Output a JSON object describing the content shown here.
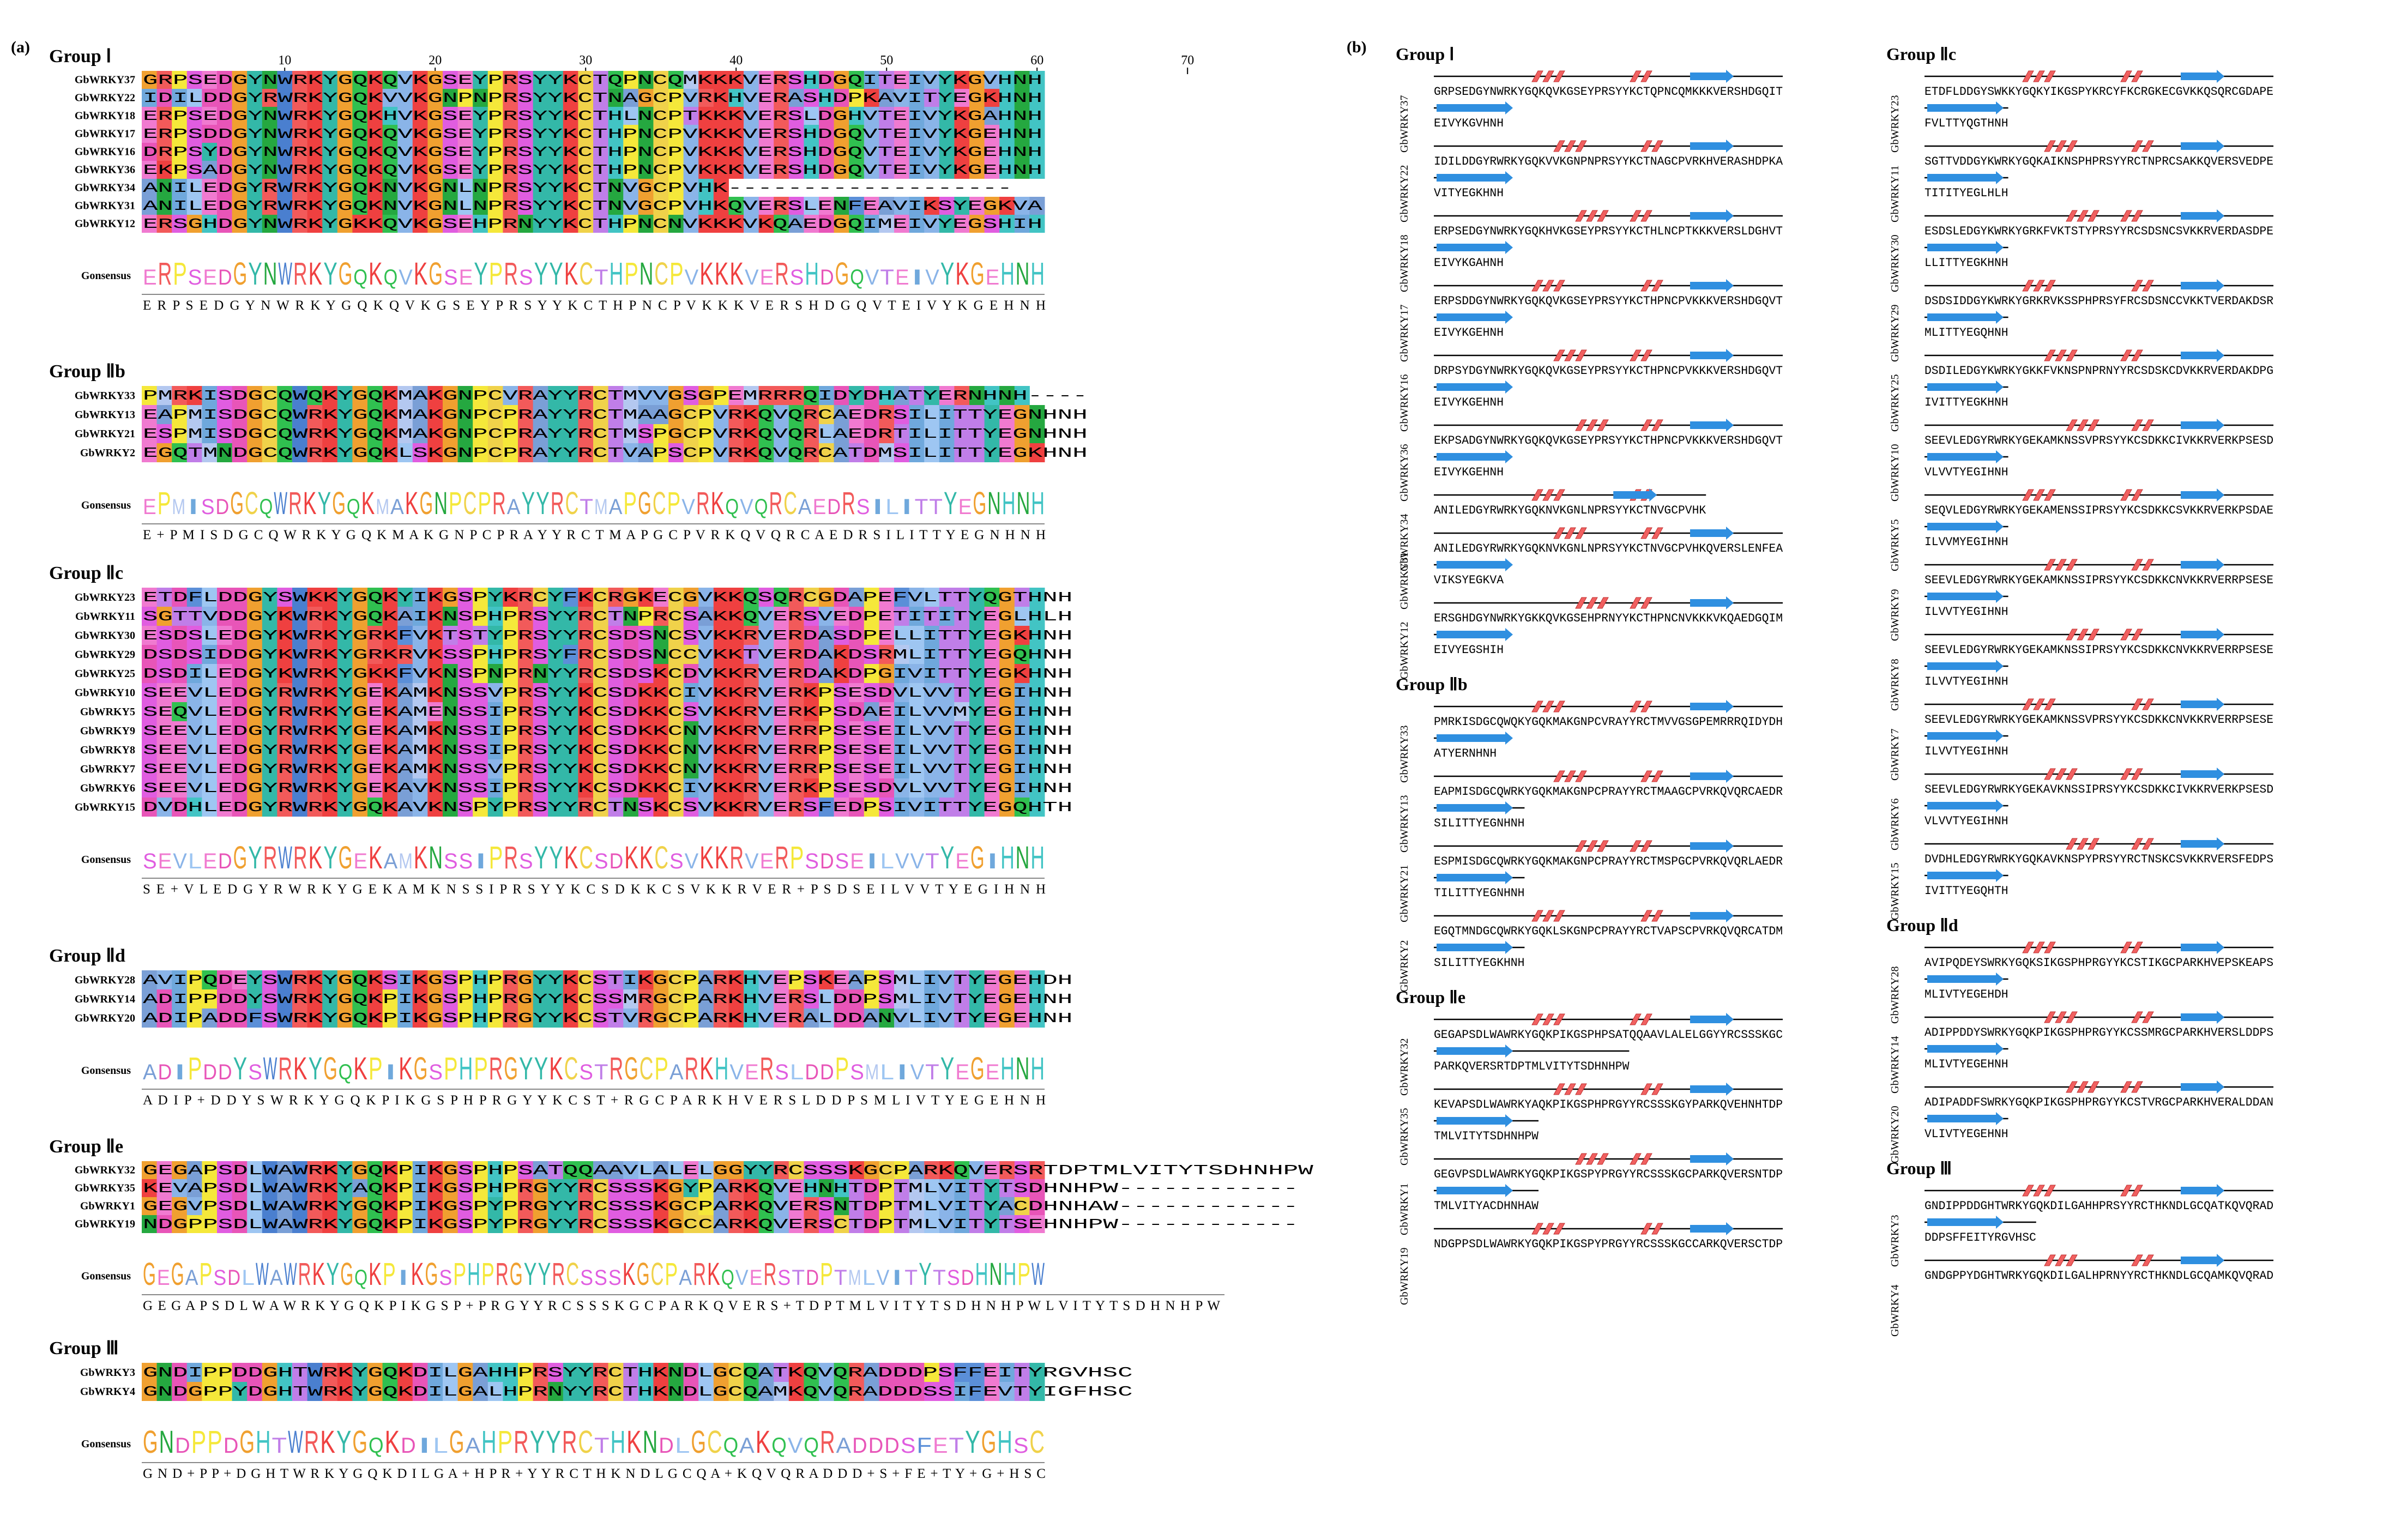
{
  "panel_a": {
    "label": "(a)",
    "ruler": [
      "10",
      "20",
      "30",
      "40",
      "50",
      "60",
      "70"
    ],
    "groups": [
      {
        "title": "Group Ⅰ",
        "rows": [
          {
            "name": "GbWRKY37",
            "seq": "GRPSEDGYNWRKYGQKQVKGSEYPRSYYKCTQPNCQMKKKVERSHDGQITEIVYKGVHNH"
          },
          {
            "name": "GbWRKY22",
            "seq": "IDILDDGYRWRKYGQKVVKGNPNPRSYYKCTNAGCPVRKHVERASHDPKAVITYEGKHNH"
          },
          {
            "name": "GbWRKY18",
            "seq": "ERPSEDGYNWRKYGQKHVKGSEYPRSYYKCTHLNCPTKKKVERSLDGHVTEIVYKGAHNH"
          },
          {
            "name": "GbWRKY17",
            "seq": "ERPSDDGYNWRKYGQKQVKGSEYPRSYYKCTHPNCPVKKKVERSHDGQVTEIVYKGEHNH"
          },
          {
            "name": "GbWRKY16",
            "seq": "DRPSYDGYNWRKYGQKQVKGSEYPRSYYKCTHPNCPVKKKVERSHDGQVTEIVYKGEHNH"
          },
          {
            "name": "GbWRKY36",
            "seq": "EKPSADGYNWRKYGQKQVKGSEYPRSYYKCTHPNCPVKKKVERSHDGQVTEIVYKGEHNH"
          },
          {
            "name": "GbWRKY34",
            "seq": "ANILEDGYRWRKYGQKNVKGNLNPRSYYKCTNVGCPVHK-------------------"
          },
          {
            "name": "GbWRKY31",
            "seq": "ANILEDGYRWRKYGQKNVKGNLNPRSYYKCTNVGCPVHKQVERSLENFEAVIKSYEGKVA"
          },
          {
            "name": "GbWRKY12",
            "seq": "ERSGHDGYNWRKYGKKQVKGSEHPRNYYKCTHPNCNVKKKVKQAEDGQIMEIVYEGSHIH"
          }
        ],
        "consensus_label": "Gonsensus",
        "consensus": "ERPSEDGYNWRKYGQKQVKGSEYPRSYYKCTHPNCPVKKKVERSHDGQVTEIVYKGEHNH",
        "consensus_line": "E R P S E D G Y N W R K Y G Q K Q V K G S E Y P R S Y Y K C T H P N C P V K K K V E R S H D G Q V T E I V Y K G E H N H"
      },
      {
        "title": "Group Ⅱb",
        "rows": [
          {
            "name": "GbWRKY33",
            "seq": "PMRKISDGCQWQKYGQKMAKGNPCVRAYYRCTMVVGSGPEMRRRQIDYDHATYERNHNH----"
          },
          {
            "name": "GbWRKY13",
            "seq": "EAPMISDGCQWRKYGQKMAKGNPCPRAYYRCTMAAGCPVRKQVQRCAEDRSILITTYEGNHNH"
          },
          {
            "name": "GbWRKY21",
            "seq": "ESPMISDGCQWRKYGQKMAKGNPCPRAYYRCTMSPGCPVRKQVQRLAEDRTILITTYEGNHNH"
          },
          {
            "name": "GbWRKY2",
            "seq": "EGQTMNDGCQWRKYGQKLSKGNPCPRAYYRCTVAPSCPVRKQVQRCATDMSILITTYEGKHNH"
          }
        ],
        "consensus_label": "Gonsensus",
        "consensus": "EPMISDGCQWRKYGQKMAKGNPCPRAYYRCTMAPGCPVRKQVQRCAEDRSILITTYEGNHNH",
        "consensus_line": "E + P M I S D G C Q W R K Y G Q K M A K G N P C P R A Y Y R C T M A P G C P V R K Q V Q R C A E D R S I L I T T Y E G N H N H"
      },
      {
        "title": "Group Ⅱc",
        "rows": [
          {
            "name": "GbWRKY23",
            "seq": "ETDFLDDGYSWKKYGQKYIKGSPYKRCYFKCRGKECGVKKQSQRCGDAPEFVLTTYQGTHNH"
          },
          {
            "name": "GbWRKY11",
            "seq": "SGTTVDDGYKWRKYGQKAIKNSPHPRSYYRCTNPRCSAKKQVERSVEDPETITITYEGLHLH"
          },
          {
            "name": "GbWRKY30",
            "seq": "ESDSLEDGYKWRKYGRKFVKTSTYPRSYYRCSDSNCSVKKRVERDASDPELLITTYEGKHNH"
          },
          {
            "name": "GbWRKY29",
            "seq": "DSDSIDDGYKWRKYGRKRVKSSPHPRSYFRCSDSNCCVKKTVERDAKDSRMLITTYEGQHNH"
          },
          {
            "name": "GbWRKY25",
            "seq": "DSDILEDGYKWRKYGKKFVKNSPNPRNYYRCSDSKCDVKKRVERDAKDPGIVITTYEGKHNH"
          },
          {
            "name": "GbWRKY10",
            "seq": "SEEVLEDGYRWRKYGEKAMKNSSVPRSYYKCSDKKCIVKKRVERKPSESDVLVVTYEGIHNH"
          },
          {
            "name": "GbWRKY5",
            "seq": "SEQVLEDGYRWRKYGEKAMENSSIPRSYYKCSDKKCSVKKRVERKPSDAEILVVMYEGIHNH"
          },
          {
            "name": "GbWRKY9",
            "seq": "SEEVLEDGYRWRKYGEKAMKNSSIPRSYYKCSDKKCNVKKRVERRPSESEILVVTYEGIHNH"
          },
          {
            "name": "GbWRKY8",
            "seq": "SEEVLEDGYRWRKYGEKAMKNSSIPRSYYKCSDKKCNVKKRVERRPSESEILVVTYEGIHNH"
          },
          {
            "name": "GbWRKY7",
            "seq": "SEEVLEDGYRWRKYGEKAMKNSSVPRSYYKCSDKKCNVKKRVERRPSESEILVVTYEGIHNH"
          },
          {
            "name": "GbWRKY6",
            "seq": "SEEVLEDGYRWRKYGEKAVKNSSIPRSYYKCSDKKCIVKKRVERKPSESDVLVVTYEGIHNH"
          },
          {
            "name": "GbWRKY15",
            "seq": "DVDHLEDGYRWRKYGQKAVKNSPYPRSYYRCTNSKCSVKKRVERSFEDPSIVITTYEGQHTH"
          }
        ],
        "consensus_label": "Gonsensus",
        "consensus": "SEVLEDGYRWRKYGEKAMKNSSIPRSYYKCSDKKCSVKKRVERPSDSEILVVTYEGIHNH",
        "consensus_line": "S E + V L E D G Y R W R K Y G E K A M K N S S I P R S Y Y K C S D K K C S V K K R V E R + P S D S E I L V V T Y E G I H N H"
      },
      {
        "title": "Group Ⅱd",
        "rows": [
          {
            "name": "GbWRKY28",
            "seq": "AVIPQDEYSWRKYGQKSIKGSPHPRGYYKCSTIKGCPARKHVEPSKEAPSMLIVTYEGEHDH"
          },
          {
            "name": "GbWRKY14",
            "seq": "ADIPPDDYSWRKYGQKPIKGSPHPRGYYKCSSMRGCPARKHVERSLDDPSMLIVTYEGEHNH"
          },
          {
            "name": "GbWRKY20",
            "seq": "ADIPADDFSWRKYGQKPIKGSPHPRGYYKCSTVRGCPARKHVERALDDANVLIVTYEGEHNH"
          }
        ],
        "consensus_label": "Gonsensus",
        "consensus": "ADIPDDYSWRKYGQKPIKGSPHPRGYYKCSTRGCPARKHVERSLDDPSMLIVTYEGEHNH",
        "consensus_line": "A D I P + D D Y S W R K Y G Q K P I K G S P H P R G Y Y K C S T + R G C P A R K H V E R S L D D P S M L I V T Y E G E H N H"
      },
      {
        "title": "Group Ⅱe",
        "rows": [
          {
            "name": "GbWRKY32",
            "seq": "GEGAPSDLWAWRKYGQKPIKGSPHPSATQQAAVLALELGGYYRCSSSKGCPARKQVERSRTDPTMLVITYTSDHNHPW"
          },
          {
            "name": "GbWRKY35",
            "seq": "KEVAPSDLWAWRKYAQKPIKGSPHPRGYYRCSSSKGYPARKQVEHNHTDPTMLVITYTSDHNHPW------------"
          },
          {
            "name": "GbWRKY1",
            "seq": "GEGVPSDLWAWRKYGQKPIKGSPYPRGYYRCSSSKGCPARKQVERSNTDPTMLVITYACDHNHAW------------"
          },
          {
            "name": "GbWRKY19",
            "seq": "NDGPPSDLWAWRKYGQKPIKGSPYPRGYYRCSSSKGCCARKQVERSCTDPTMLVITYTSEHNHPW------------"
          }
        ],
        "consensus_label": "Gonsensus",
        "consensus": "GEGAPSDLWAWRKYGQKPIKGSPHPRGYYRCSSSKGCPARKQVERSTDPTMLVITYTSDHNHPW",
        "consensus_line": "G E G A P S D L W A W R K Y G Q K P I K G S P + P R G Y Y R C S S S K G C P A R K Q V E R S + T D P T M L V I T Y T S D H N H P W L V I T Y T S D H N H P W"
      },
      {
        "title": "Group Ⅲ",
        "rows": [
          {
            "name": "GbWRKY3",
            "seq": "GNDIPPDDGHTWRKYGQKDILGAHHPRSYYRCTHKNDLGCQATKQVQRADDDPSFFEITYRGVHSC"
          },
          {
            "name": "GbWRKY4",
            "seq": "GNDGPPYDGHTWRKYGQKDILGALHPRNYYRCTHKNDLGCQAMKQVQRADDDSSIFEVTYIGFHSC"
          }
        ],
        "consensus_label": "Gonsensus",
        "consensus": "GNDPPDGHTWRKYGQKDILGAHPRYYRCTHKNDLGCQAKQVQRADDDSFETYGHSC",
        "consensus_line": "G N D + P P + D G H T W R K Y G Q K D I L G A + H P R + Y Y R C T H K N D L G C Q A + K Q V Q R A D D D + S + F E + T Y + G + H S C"
      }
    ]
  },
  "panel_b": {
    "label": "(b)",
    "left_column": [
      {
        "title": "Group Ⅰ",
        "entries": [
          {
            "name": "GbWRKY37",
            "lines": [
              "GRPSEDGYNWRKYGQKQVKGSEYPRSYYKCTQPNCQMKKKVERSHDGQIT",
              "EIVYKGVHNH"
            ]
          },
          {
            "name": "GbWRKY22",
            "lines": [
              "IDILDDGYRWRKYGQKVVKGNPNPRSYYKCTNAGCPVRKHVERASHDPKA",
              "VITYEGKHNH"
            ]
          },
          {
            "name": "GbWRKY18",
            "lines": [
              "ERPSEDGYNWRKYGQKHVKGSEYPRSYYKCTHLNCPTKKKVERSLDGHVT",
              "EIVYKGAHNH"
            ]
          },
          {
            "name": "GbWRKY17",
            "lines": [
              "ERPSDDGYNWRKYGQKQVKGSEYPRSYYKCTHPNCPVKKKVERSHDGQVT",
              "EIVYKGEHNH"
            ]
          },
          {
            "name": "GbWRKY16",
            "lines": [
              "DRPSYDGYNWRKYGQKQVKGSEYPRSYYKCTHPNCPVKKKVERSHDGQVT",
              "EIVYKGEHNH"
            ]
          },
          {
            "name": "GbWRKY36",
            "lines": [
              "EKPSADGYNWRKYGQKQVKGSEYPRSYYKCTHPNCPVKKKVERSHDGQVT",
              "EIVYKGEHNH"
            ]
          },
          {
            "name": "GbWRKY34",
            "lines": [
              "ANILEDGYRWRKYGQKNVKGNLNPRSYYKCTNVGCPVHK"
            ]
          },
          {
            "name": "GbWRKY31",
            "lines": [
              "ANILEDGYRWRKYGQKNVKGNLNPRSYYKCTNVGCPVHKQVERSLENFEA",
              "VIKSYEGKVA"
            ]
          },
          {
            "name": "GbWRKY12",
            "lines": [
              "ERSGHDGYNWRKYGKKQVKGSEHPRNYYKCTHPNCNVKKKVKQAEDGQIM",
              "EIVYEGSHIH"
            ]
          }
        ]
      },
      {
        "title": "Group Ⅱb",
        "entries": [
          {
            "name": "GbWRKY33",
            "lines": [
              "PMRKISDGCQWQKYGQKMAKGNPCVRAYYRCTMVVGSGPEMRRRQIDYDH",
              "ATYERNHNH"
            ]
          },
          {
            "name": "GbWRKY13",
            "lines": [
              "EAPMISDGCQWRKYGQKMAKGNPCPRAYYRCTMAAGCPVRKQVQRCAEDR",
              "SILITTYEGNHNH"
            ]
          },
          {
            "name": "GbWRKY21",
            "lines": [
              "ESPMISDGCQWRKYGQKMAKGNPCPRAYYRCTMSPGCPVRKQVQRLAEDR",
              "TILITTYEGNHNH"
            ]
          },
          {
            "name": "GbWRKY2",
            "lines": [
              "EGQTMNDGCQWRKYGQKLSKGNPCPRAYYRCTVAPSCPVRKQVQRCATDM",
              "SILITTYEGKHNH"
            ]
          }
        ]
      },
      {
        "title": "Group Ⅱe",
        "entries": [
          {
            "name": "GbWRKY32",
            "lines": [
              "GEGAPSDLWAWRKYGQKPIKGSPHPSATQQAAVLALELGGYYRCSSSKGC",
              "PARKQVERSRTDPTMLVITYTSDHNHPW"
            ]
          },
          {
            "name": "GbWRKY35",
            "lines": [
              "KEVAPSDLWAWRKYAQKPIKGSPHPRGYYRCSSSKGYPARKQVEHNHTDP",
              "TMLVITYTSDHNHPW"
            ]
          },
          {
            "name": "GbWRKY1",
            "lines": [
              "GEGVPSDLWAWRKYGQKPIKGSPYPRGYYRCSSSKGCPARKQVERSNTDP",
              "TMLVITYACDHNHAW"
            ]
          },
          {
            "name": "GbWRKY19",
            "lines": [
              "NDGPPSDLWAWRKYGQKPIKGSPYPRGYYRCSSSKGCCARKQVERSCTDP"
            ]
          }
        ]
      }
    ],
    "right_column": [
      {
        "title": "Group Ⅱc",
        "entries": [
          {
            "name": "GbWRKY23",
            "lines": [
              "ETDFLDDGYSWKKYGQKYIKGSPYKRCYFKCRGKECGVKKQSQRCGDAPE",
              "FVLTTYQGTHNH"
            ]
          },
          {
            "name": "GbWRKY11",
            "lines": [
              "SGTTVDDGYKWRKYGQKAIKNSPHPRSYYRCTNPRCSAKKQVERSVEDPE",
              "TITITYEGLHLH"
            ]
          },
          {
            "name": "GbWRKY30",
            "lines": [
              "ESDSLEDGYKWRKYGRKFVKTSTYPRSYYRCSDSNCSVKKRVERDASDPE",
              "LLITTYEGKHNH"
            ]
          },
          {
            "name": "GbWRKY29",
            "lines": [
              "DSDSIDDGYKWRKYGRKRVKSSPHPRSYFRCSDSNCCVKKTVERDAKDSR",
              "MLITTYEGQHNH"
            ]
          },
          {
            "name": "GbWRKY25",
            "lines": [
              "DSDILEDGYKWRKYGKKFVKNSPNPRNYYRCSDSKCDVKKRVERDAKDPG",
              "IVITTYEGKHNH"
            ]
          },
          {
            "name": "GbWRKY10",
            "lines": [
              "SEEVLEDGYRWRKYGEKAMKNSSVPRSYYKCSDKKCIVKKRVERKPSESD",
              "VLVVTYEGIHNH"
            ]
          },
          {
            "name": "GbWRKY5",
            "lines": [
              "SEQVLEDGYRWRKYGEKAMENSSIPRSYYKCSDKKCSVKKRVERKPSDAE",
              "ILVVMYEGIHNH"
            ]
          },
          {
            "name": "GbWRKY9",
            "lines": [
              "SEEVLEDGYRWRKYGEKAMKNSSIPRSYYKCSDKKCNVKKRVERRPSESE",
              "ILVVTYEGIHNH"
            ]
          },
          {
            "name": "GbWRKY8",
            "lines": [
              "SEEVLEDGYRWRKYGEKAMKNSSIPRSYYKCSDKKCNVKKRVERRPSESE",
              "ILVVTYEGIHNH"
            ]
          },
          {
            "name": "GbWRKY7",
            "lines": [
              "SEEVLEDGYRWRKYGEKAMKNSSVPRSYYKCSDKKCNVKKRVERRPSESE",
              "ILVVTYEGIHNH"
            ]
          },
          {
            "name": "GbWRKY6",
            "lines": [
              "SEEVLEDGYRWRKYGEKAVKNSSIPRSYYKCSDKKCIVKKRVERKPSESD",
              "VLVVTYEGIHNH"
            ]
          },
          {
            "name": "GbWRKY15",
            "lines": [
              "DVDHLEDGYRWRKYGQKAVKNSPYPRSYYRCTNSKCSVKKRVERSFEDPS",
              "IVITTYEGQHTH"
            ]
          }
        ]
      },
      {
        "title": "Group Ⅱd",
        "entries": [
          {
            "name": "GbWRKY28",
            "lines": [
              "AVIPQDEYSWRKYGQKSIKGSPHPRGYYKCSTIKGCPARKHVEPSKEAPS",
              "MLIVTYEGEHDH"
            ]
          },
          {
            "name": "GbWRKY14",
            "lines": [
              "ADIPPDDYSWRKYGQKPIKGSPHPRGYYKCSSMRGCPARKHVERSLDDPS",
              "MLIVTYEGEHNH"
            ]
          },
          {
            "name": "GbWRKY20",
            "lines": [
              "ADIPADDFSWRKYGQKPIKGSPHPRGYYKCSTVRGCPARKHVERALDDAN",
              "VLIVTYEGEHNH"
            ]
          }
        ]
      },
      {
        "title": "Group Ⅲ",
        "entries": [
          {
            "name": "GbWRKY3",
            "lines": [
              "GNDIPPDDGHTWRKYGQKDILGAHHPRSYYRCTHKNDLGCQATKQVQRAD",
              "DDPSFFEITYRGVHSC"
            ]
          },
          {
            "name": "GbWRKY4",
            "lines": [
              "GNDGPPYDGHTWRKYGQKDILGALHPRNYYRCTHKNDLGCQAMKQVQRAD"
            ]
          }
        ]
      }
    ]
  },
  "colors": {
    "G": "#f0a030",
    "P": "#f5e83a",
    "A": "#7a9fd6",
    "V": "#8ab4e8",
    "L": "#9ec6f2",
    "I": "#6fa8dc",
    "M": "#b4c8f0",
    "F": "#5b8fd8",
    "W": "#4a7fcf",
    "Y": "#33b8a8",
    "C": "#f0d24a",
    "S": "#e05de0",
    "T": "#c07ee8",
    "N": "#25a840",
    "Q": "#30c050",
    "D": "#e855b8",
    "E": "#f07ad0",
    "K": "#ef4040",
    "R": "#f25a5a",
    "H": "#42c4c4",
    "helix": "#f06060",
    "strand": "#2f8fe0"
  }
}
